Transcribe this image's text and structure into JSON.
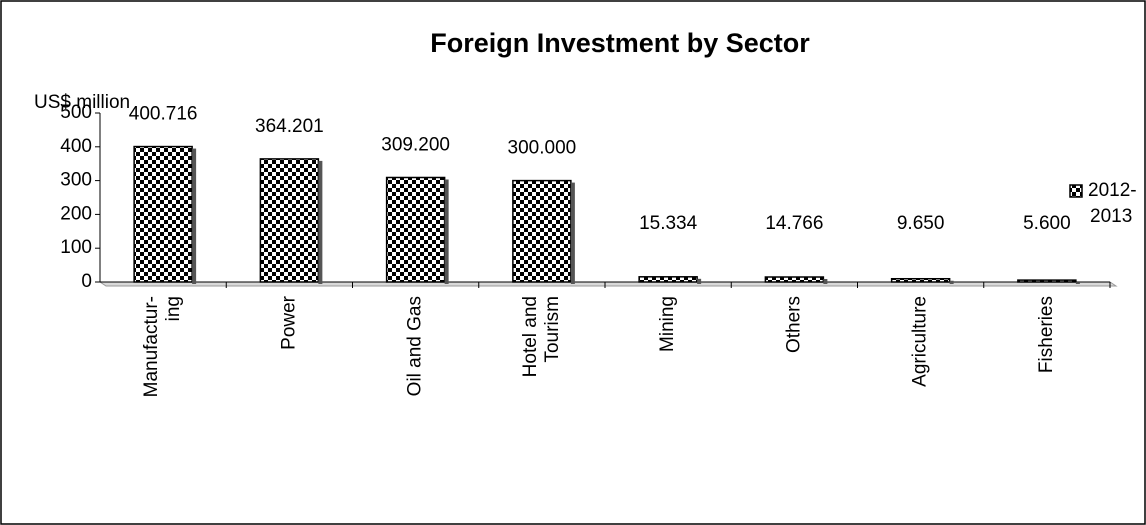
{
  "chart_data": {
    "type": "bar",
    "title": "Foreign Investment  by Sector",
    "y_label": "US$ million",
    "categories": [
      "Manufactur-\ning",
      "Power",
      "Oil and Gas",
      "Hotel and\nTourism",
      "Mining",
      "Others",
      "Agriculture",
      "Fisheries"
    ],
    "series": [
      {
        "name": "2012-2013",
        "color": "#000000",
        "values": [
          400.716,
          364.201,
          309.2,
          300,
          15.334,
          14.766,
          9.65,
          5.6
        ],
        "value_labels": [
          "400.716",
          "364.201",
          "309.200",
          "300.000",
          "15.334",
          "14.766",
          "9.650",
          "5.600"
        ]
      }
    ],
    "ylim": [
      0,
      500
    ],
    "yticks": [
      0,
      100,
      200,
      300,
      400,
      500
    ],
    "legend": "right"
  }
}
